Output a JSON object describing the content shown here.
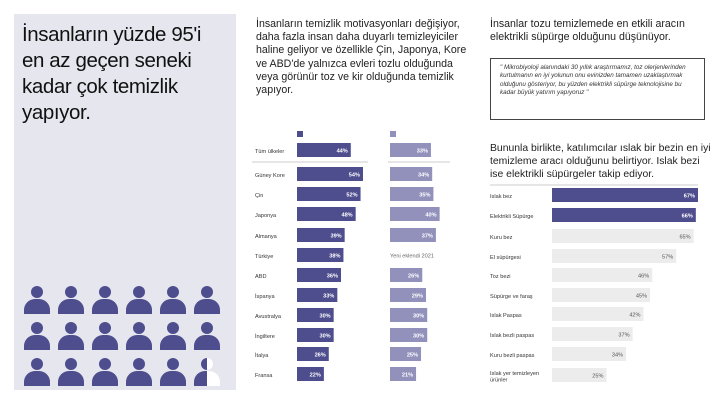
{
  "headline": "İnsanların yüzde 95'i en az geçen seneki kadar çok temizlik yapıyor.",
  "middle_text": "İnsanların temizlik motivasyonları değişiyor, daha fazla insan daha duyarlı temizleyiciler haline geliyor ve özellikle Çin, Japonya, Kore ve ABD'de yalnızca evleri tozlu olduğunda veya görünür toz ve kir olduğunda temizlik yapıyor.",
  "right_text": "İnsanlar tozu temizlemede en etkili aracın elektrikli süpürge olduğunu düşünüyor.",
  "quote": "\" Mikrobiyoloji alanındaki 30 yıllık araştırmamız, toz olerjenlerinden kurtulmanın en iyi yolunun onu evinizden tamamen uzaklaştırmak olduğunu gösteriyor, bu yüzden elektrikli süpürge teknolojisine bu kadar büyük yatırım yapıyoruz \"",
  "right_text2": "Bununla birlikte, katılımcılar ıslak bir bezin en iyi temizleme aracı olduğunu belirtiyor. Islak bezi ise elektrikli süpürgeler takip ediyor.",
  "people_icons": {
    "full_count": 17,
    "half_count": 1
  },
  "colors": {
    "panel_bg": "#e6e6ef",
    "primary_bar": "#4e4d8e",
    "secondary_bar": "#9291bc",
    "grey_bar": "#ececec",
    "people": "#4e4d8e"
  },
  "chart_data": [
    {
      "type": "bar",
      "orientation": "horizontal",
      "categories": [
        "Tüm ülkeler",
        "Güney Kore",
        "Çin",
        "Japonya",
        "Almanya",
        "Türkiye",
        "ABD",
        "İspanya",
        "Avustralya",
        "İngiltere",
        "İtalya",
        "Fransa"
      ],
      "series": [
        {
          "values": [
            44,
            54,
            52,
            48,
            39,
            38,
            36,
            33,
            30,
            30,
            26,
            22
          ]
        },
        {
          "values": [
            33,
            34,
            35,
            40,
            37,
            null,
            26,
            29,
            30,
            30,
            25,
            21
          ]
        }
      ],
      "annotation": "Yeni eklendi 2021",
      "value_suffix": "%"
    },
    {
      "type": "bar",
      "orientation": "horizontal",
      "categories": [
        "Islak bez",
        "Elektrikli Süpürge",
        "Kuru bez",
        "El süpürgesi",
        "Toz bezi",
        "Süpürge ve faraş",
        "Islak Paspas",
        "Islak bezli paspas",
        "Kuru bezli paspas",
        "Islak yer temizleyen ürünler"
      ],
      "values": [
        67,
        66,
        65,
        57,
        46,
        45,
        42,
        37,
        34,
        25
      ],
      "value_suffix": "%"
    }
  ]
}
